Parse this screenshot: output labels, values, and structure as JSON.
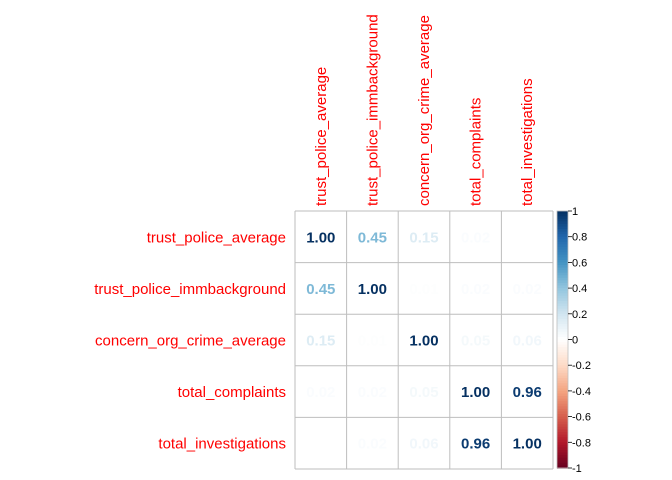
{
  "chart_data": {
    "type": "heatmap",
    "subtype": "correlation-matrix",
    "variables": [
      "trust_police_average",
      "trust_police_immbackground",
      "concern_org_crime_average",
      "total_complaints",
      "total_investigations"
    ],
    "matrix": [
      [
        1.0,
        0.45,
        0.15,
        0.02,
        0.0
      ],
      [
        0.45,
        1.0,
        0.01,
        0.02,
        0.02
      ],
      [
        0.15,
        0.01,
        1.0,
        0.05,
        0.06
      ],
      [
        0.02,
        0.02,
        0.05,
        1.0,
        0.96
      ],
      [
        0.0,
        0.02,
        0.06,
        0.96,
        1.0
      ]
    ],
    "value_labels": [
      [
        "1.00",
        "0.45",
        "0.15",
        "0.02",
        ""
      ],
      [
        "0.45",
        "1.00",
        "0.01",
        "0.02",
        "0.02"
      ],
      [
        "0.15",
        "0.01",
        "1.00",
        "0.05",
        "0.06"
      ],
      [
        "0.02",
        "0.02",
        "0.05",
        "1.00",
        "0.96"
      ],
      [
        "",
        "0.02",
        "0.06",
        "0.96",
        "1.00"
      ]
    ],
    "color_scale": {
      "range": [
        -1,
        1
      ],
      "stops": [
        "#67001F",
        "#B2182B",
        "#D6604D",
        "#F4A582",
        "#FDDBC7",
        "#FFFFFF",
        "#D1E5F0",
        "#92C5DE",
        "#4393C3",
        "#2166AC",
        "#053061"
      ]
    },
    "colorbar_ticks": [
      "1",
      "0.8",
      "0.6",
      "0.4",
      "0.2",
      "0",
      "-0.2",
      "-0.4",
      "-0.6",
      "-0.8",
      "-1"
    ],
    "label_color": "#FF0000",
    "grid_color": "#BEBEBE"
  }
}
